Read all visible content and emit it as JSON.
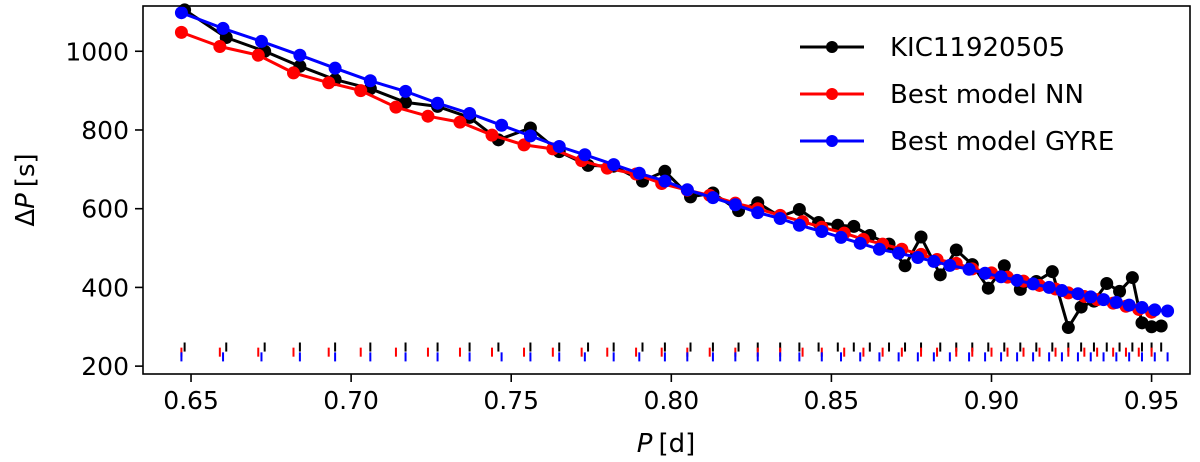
{
  "chart_data": {
    "type": "line",
    "title": "",
    "xlabel_var": "P",
    "xlabel_unit": "[d]",
    "ylabel_prefix": "Δ",
    "ylabel_var": "P",
    "ylabel_unit": "[s]",
    "xlim": [
      0.635,
      0.962
    ],
    "ylim": [
      180,
      1115
    ],
    "xticks": [
      0.65,
      0.7,
      0.75,
      0.8,
      0.85,
      0.9,
      0.95
    ],
    "xtick_labels": [
      "0.65",
      "0.70",
      "0.75",
      "0.80",
      "0.85",
      "0.90",
      "0.95"
    ],
    "yticks": [
      200,
      400,
      600,
      800,
      1000
    ],
    "ytick_labels": [
      "200",
      "400",
      "600",
      "800",
      "1000"
    ],
    "legend_position": "top-right",
    "series": [
      {
        "name": "KIC11920505",
        "color": "#000000",
        "x": [
          0.648,
          0.661,
          0.673,
          0.684,
          0.695,
          0.706,
          0.717,
          0.727,
          0.737,
          0.746,
          0.756,
          0.765,
          0.774,
          0.782,
          0.791,
          0.798,
          0.806,
          0.813,
          0.821,
          0.827,
          0.834,
          0.84,
          0.846,
          0.852,
          0.857,
          0.862,
          0.868,
          0.873,
          0.878,
          0.884,
          0.889,
          0.894,
          0.899,
          0.904,
          0.909,
          0.914,
          0.919,
          0.924,
          0.928,
          0.932,
          0.936,
          0.94,
          0.944,
          0.947,
          0.95,
          0.953
        ],
        "values": [
          1105,
          1035,
          1000,
          962,
          928,
          905,
          870,
          860,
          832,
          775,
          805,
          745,
          710,
          708,
          670,
          695,
          630,
          640,
          595,
          615,
          580,
          598,
          565,
          558,
          555,
          532,
          510,
          455,
          528,
          432,
          495,
          458,
          398,
          455,
          395,
          415,
          440,
          298,
          350,
          365,
          410,
          390,
          425,
          310,
          300,
          302
        ],
        "ticks_x": [
          0.648,
          0.661,
          0.673,
          0.684,
          0.695,
          0.706,
          0.717,
          0.727,
          0.737,
          0.746,
          0.756,
          0.765,
          0.774,
          0.782,
          0.791,
          0.798,
          0.806,
          0.813,
          0.821,
          0.827,
          0.834,
          0.84,
          0.846,
          0.852,
          0.857,
          0.862,
          0.868,
          0.873,
          0.878,
          0.884,
          0.889,
          0.894,
          0.899,
          0.904,
          0.909,
          0.914,
          0.919,
          0.924,
          0.928,
          0.932,
          0.936,
          0.94,
          0.944,
          0.947,
          0.95,
          0.953
        ],
        "tick_band": [
          237,
          260
        ]
      },
      {
        "name": "Best model NN",
        "color": "#ff0000",
        "x": [
          0.647,
          0.659,
          0.671,
          0.682,
          0.693,
          0.703,
          0.714,
          0.724,
          0.734,
          0.744,
          0.754,
          0.763,
          0.772,
          0.78,
          0.789,
          0.797,
          0.805,
          0.812,
          0.82,
          0.827,
          0.834,
          0.841,
          0.847,
          0.854,
          0.86,
          0.866,
          0.872,
          0.878,
          0.883,
          0.889,
          0.894,
          0.9,
          0.905,
          0.91,
          0.915,
          0.92,
          0.924,
          0.929,
          0.933,
          0.938,
          0.942,
          0.946,
          0.95
        ],
        "values": [
          1048,
          1012,
          990,
          945,
          920,
          900,
          858,
          835,
          820,
          787,
          762,
          752,
          722,
          703,
          688,
          664,
          647,
          634,
          614,
          600,
          583,
          567,
          553,
          538,
          522,
          510,
          497,
          484,
          471,
          461,
          447,
          437,
          426,
          416,
          405,
          396,
          386,
          377,
          369,
          360,
          352,
          344,
          337
        ],
        "ticks_x": [
          0.647,
          0.659,
          0.671,
          0.682,
          0.693,
          0.703,
          0.714,
          0.724,
          0.734,
          0.744,
          0.754,
          0.763,
          0.772,
          0.78,
          0.789,
          0.797,
          0.805,
          0.812,
          0.82,
          0.827,
          0.834,
          0.841,
          0.847,
          0.854,
          0.86,
          0.866,
          0.872,
          0.878,
          0.883,
          0.889,
          0.894,
          0.9,
          0.905,
          0.91,
          0.915,
          0.92,
          0.924,
          0.929,
          0.933,
          0.938,
          0.942,
          0.946,
          0.95
        ],
        "tick_band": [
          224,
          247
        ]
      },
      {
        "name": "Best model GYRE",
        "color": "#0000ff",
        "x": [
          0.647,
          0.66,
          0.672,
          0.684,
          0.695,
          0.706,
          0.717,
          0.727,
          0.737,
          0.747,
          0.756,
          0.765,
          0.773,
          0.782,
          0.79,
          0.798,
          0.805,
          0.813,
          0.82,
          0.827,
          0.834,
          0.84,
          0.847,
          0.853,
          0.859,
          0.865,
          0.871,
          0.877,
          0.882,
          0.887,
          0.893,
          0.898,
          0.903,
          0.908,
          0.913,
          0.918,
          0.922,
          0.927,
          0.931,
          0.935,
          0.939,
          0.943,
          0.947,
          0.951,
          0.955
        ],
        "values": [
          1098,
          1058,
          1025,
          990,
          957,
          925,
          898,
          868,
          842,
          812,
          785,
          758,
          737,
          712,
          690,
          670,
          648,
          628,
          610,
          590,
          575,
          558,
          542,
          527,
          512,
          497,
          487,
          476,
          466,
          456,
          446,
          436,
          427,
          418,
          409,
          400,
          392,
          384,
          376,
          369,
          362,
          355,
          349,
          343,
          340
        ],
        "ticks_x": [
          0.647,
          0.66,
          0.672,
          0.684,
          0.695,
          0.706,
          0.717,
          0.727,
          0.737,
          0.747,
          0.756,
          0.765,
          0.773,
          0.782,
          0.79,
          0.798,
          0.805,
          0.813,
          0.82,
          0.827,
          0.834,
          0.84,
          0.847,
          0.853,
          0.859,
          0.865,
          0.871,
          0.877,
          0.882,
          0.887,
          0.893,
          0.898,
          0.903,
          0.908,
          0.913,
          0.918,
          0.922,
          0.927,
          0.931,
          0.935,
          0.939,
          0.943,
          0.947,
          0.951,
          0.955
        ],
        "tick_band": [
          212,
          235
        ]
      }
    ]
  }
}
